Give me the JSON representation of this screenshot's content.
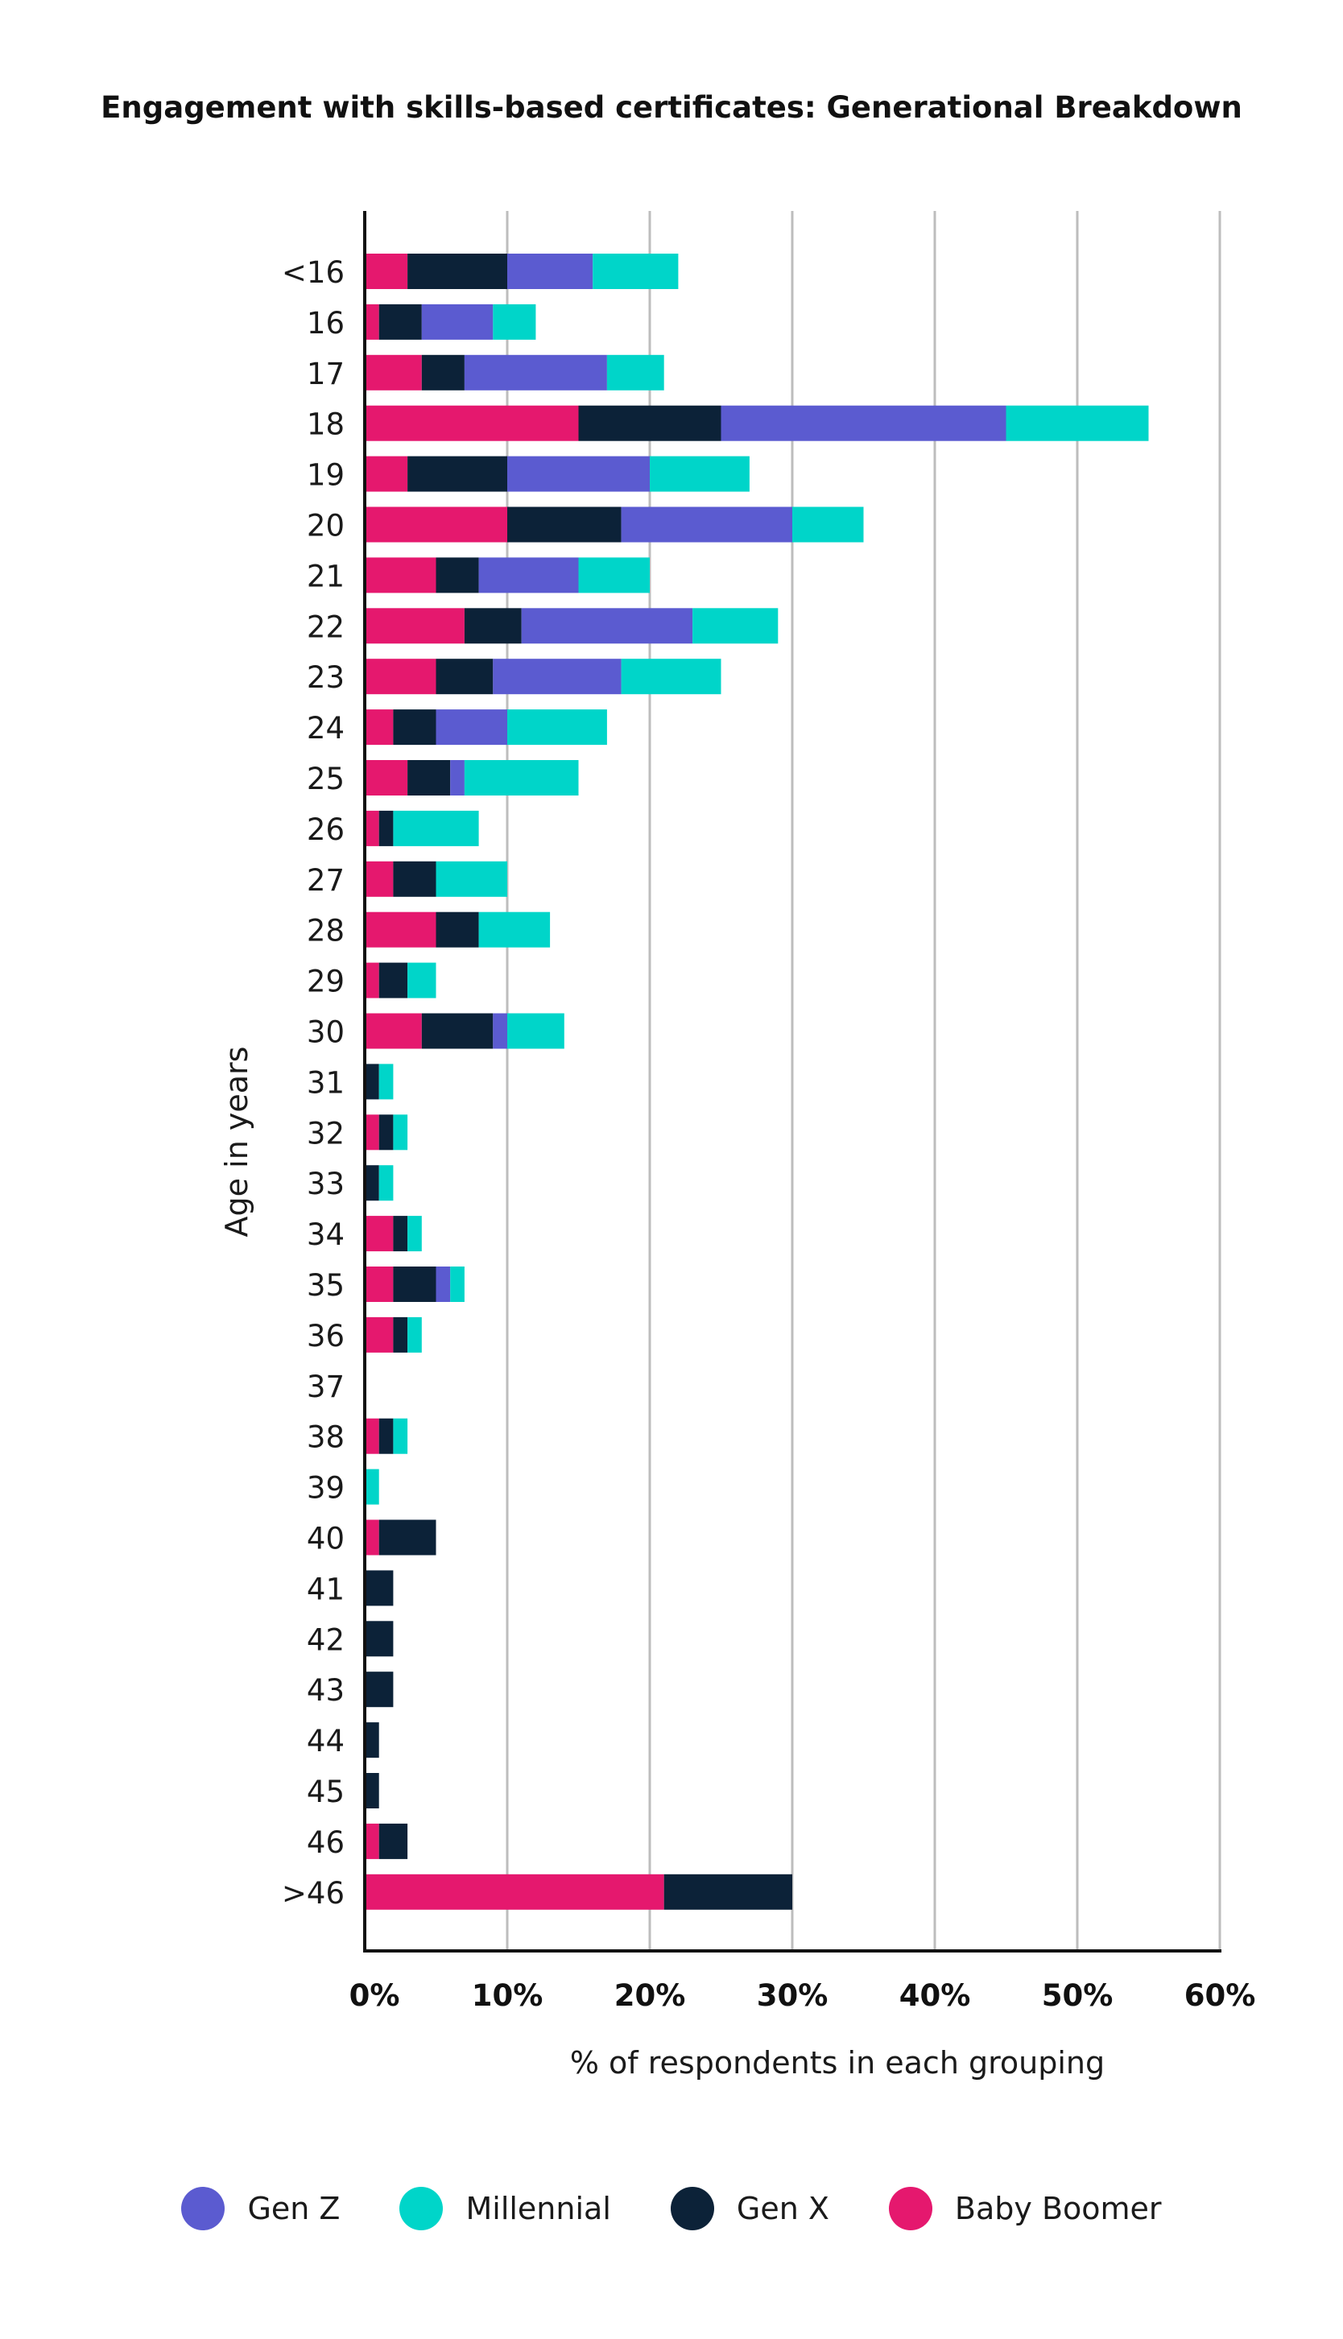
{
  "chart_data": {
    "type": "bar",
    "orientation": "horizontal",
    "stacked": true,
    "title": "Engagement with skills-based certificates: Generational Breakdown",
    "xlabel": "% of respondents in each grouping",
    "ylabel": "Age in years",
    "xlim": [
      0,
      60
    ],
    "xticks": [
      "0%",
      "10%",
      "20%",
      "30%",
      "40%",
      "50%",
      "60%"
    ],
    "xtick_values": [
      0,
      10,
      20,
      30,
      40,
      50,
      60
    ],
    "grid": true,
    "legend_position": "bottom",
    "categories": [
      "<16",
      "16",
      "17",
      "18",
      "19",
      "20",
      "21",
      "22",
      "23",
      "24",
      "25",
      "26",
      "27",
      "28",
      "29",
      "30",
      "31",
      "32",
      "33",
      "34",
      "35",
      "36",
      "37",
      "38",
      "39",
      "40",
      "41",
      "42",
      "43",
      "44",
      "45",
      "46",
      ">46"
    ],
    "series": [
      {
        "name": "Baby Boomer",
        "color": "#e5186e",
        "values": [
          3,
          1,
          4,
          15,
          3,
          10,
          5,
          7,
          5,
          2,
          3,
          1,
          2,
          5,
          1,
          4,
          0,
          1,
          0,
          2,
          2,
          2,
          0,
          1,
          0,
          1,
          0,
          0,
          0,
          0,
          0,
          1,
          21
        ]
      },
      {
        "name": "Gen X",
        "color": "#0c2238",
        "values": [
          7,
          3,
          3,
          10,
          7,
          8,
          3,
          4,
          4,
          3,
          3,
          1,
          3,
          3,
          2,
          5,
          1,
          1,
          1,
          1,
          3,
          1,
          0,
          1,
          0,
          4,
          2,
          2,
          2,
          1,
          1,
          2,
          9
        ]
      },
      {
        "name": "Gen Z",
        "color": "#5b5bd0",
        "values": [
          6,
          5,
          10,
          20,
          10,
          12,
          7,
          12,
          9,
          5,
          1,
          0,
          0,
          0,
          0,
          1,
          0,
          0,
          0,
          0,
          1,
          0,
          0,
          0,
          0,
          0,
          0,
          0,
          0,
          0,
          0,
          0,
          0
        ]
      },
      {
        "name": "Millennial",
        "color": "#00d5c9",
        "values": [
          6,
          3,
          4,
          10,
          7,
          5,
          5,
          6,
          7,
          7,
          8,
          6,
          5,
          5,
          2,
          4,
          1,
          1,
          1,
          1,
          1,
          1,
          0,
          1,
          1,
          0,
          0,
          0,
          0,
          0,
          0,
          0,
          0
        ]
      }
    ],
    "legend": [
      {
        "name": "Gen Z",
        "color": "#5b5bd0"
      },
      {
        "name": "Millennial",
        "color": "#00d5c9"
      },
      {
        "name": "Gen X",
        "color": "#0c2238"
      },
      {
        "name": "Baby Boomer",
        "color": "#e5186e"
      }
    ]
  }
}
